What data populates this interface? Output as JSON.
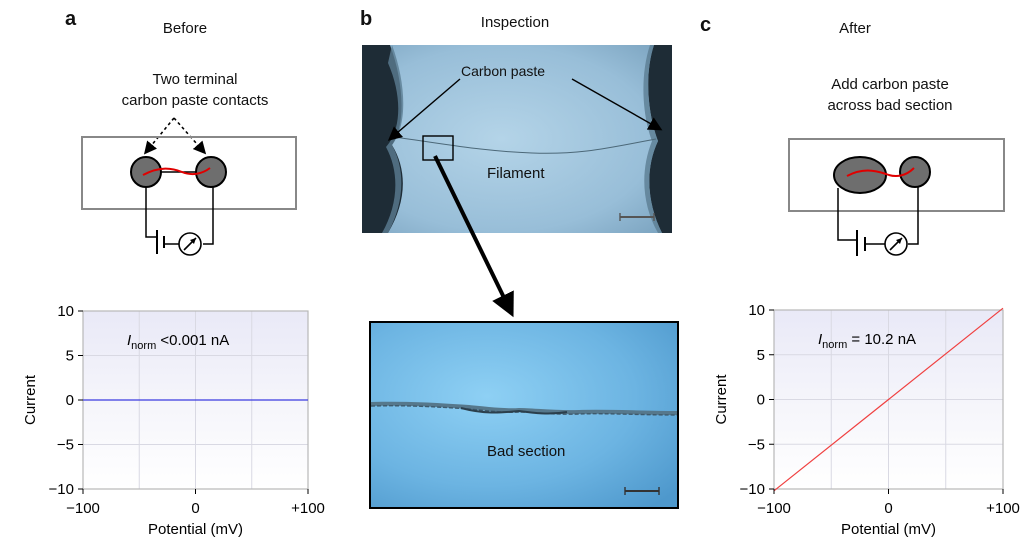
{
  "panel_a": {
    "letter": "a",
    "title": "Before",
    "caption_line1": "Two terminal",
    "caption_line2": "carbon paste contacts"
  },
  "panel_b": {
    "letter": "b",
    "title": "Inspection",
    "label_carbon": "Carbon paste",
    "label_filament": "Filament",
    "label_bad": "Bad section"
  },
  "panel_c": {
    "letter": "c",
    "title": "After",
    "caption_line1": "Add carbon paste",
    "caption_line2": "across bad section"
  },
  "chart_data": [
    {
      "type": "line",
      "xlabel": "Potential (mV)",
      "ylabel": "Current",
      "xlim": [
        -100,
        100
      ],
      "ylim": [
        -10,
        10
      ],
      "xticks": [
        "−100",
        "0",
        "+100"
      ],
      "yticks": [
        "10",
        "5",
        "0",
        "−5",
        "−10"
      ],
      "annotation_sym": "I",
      "annotation_sub": "norm",
      "annotation_rest": " <0.001 nA",
      "series": [
        {
          "x": [
            -100,
            100
          ],
          "y": [
            0,
            0
          ],
          "color": "#3a3ae0"
        }
      ],
      "grid": true
    },
    {
      "type": "line",
      "xlabel": "Potential (mV)",
      "ylabel": "Current",
      "xlim": [
        -100,
        100
      ],
      "ylim": [
        -10,
        10
      ],
      "xticks": [
        "−100",
        "0",
        "+100"
      ],
      "yticks": [
        "10",
        "5",
        "0",
        "−5",
        "−10"
      ],
      "annotation_sym": "I",
      "annotation_sub": "norm",
      "annotation_rest": " = 10.2 nA",
      "series": [
        {
          "x": [
            -100,
            100
          ],
          "y": [
            -10.2,
            10.2
          ],
          "color": "#f04040"
        }
      ],
      "grid": true
    }
  ]
}
